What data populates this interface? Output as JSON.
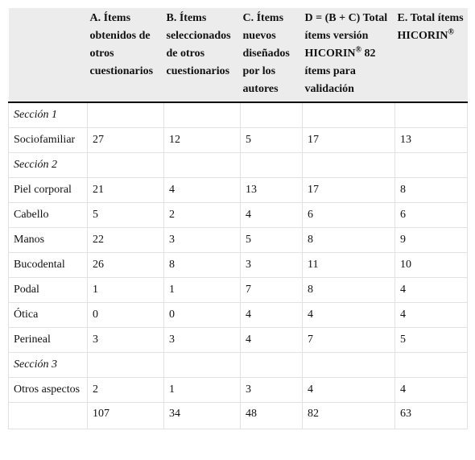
{
  "table": {
    "columns": [
      "A. Ítems obtenidos de otros cuestionarios",
      "B. Ítems seleccionados de otros cuestionarios",
      "C. Ítems nuevos diseñados por los autores",
      {
        "text": "D = (B + C) Total ítems versión HICORIN",
        "sup": "®",
        "tail": " 82 ítems para validación"
      },
      {
        "text": "E. Total ítems HICORIN",
        "sup": "®"
      }
    ],
    "rows": [
      {
        "section": "Sección 1"
      },
      {
        "label": "Sociofamiliar",
        "values": [
          27,
          12,
          5,
          17,
          13
        ]
      },
      {
        "section": "Sección 2"
      },
      {
        "label": "Piel corporal",
        "values": [
          21,
          4,
          13,
          17,
          8
        ]
      },
      {
        "label": "Cabello",
        "values": [
          5,
          2,
          4,
          6,
          6
        ]
      },
      {
        "label": "Manos",
        "values": [
          22,
          3,
          5,
          8,
          9
        ]
      },
      {
        "label": "Bucodental",
        "values": [
          26,
          8,
          3,
          11,
          10
        ]
      },
      {
        "label": "Podal",
        "values": [
          1,
          1,
          7,
          8,
          4
        ]
      },
      {
        "label": "Ótica",
        "values": [
          0,
          0,
          4,
          4,
          4
        ]
      },
      {
        "label": "Perineal",
        "values": [
          3,
          3,
          4,
          7,
          5
        ]
      },
      {
        "section": "Sección 3"
      },
      {
        "label": "Otros aspectos",
        "values": [
          2,
          1,
          3,
          4,
          4
        ]
      },
      {
        "values": [
          107,
          34,
          48,
          82,
          63
        ]
      }
    ]
  }
}
